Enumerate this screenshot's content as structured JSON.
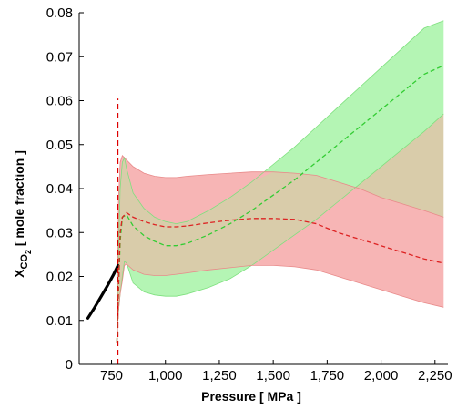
{
  "chart_data": {
    "type": "line",
    "title": "",
    "xlabel": "Pressure [ MPa ]",
    "ylabel": {
      "main": "X",
      "sub1": "CO",
      "sub2": "2",
      "rest": " [ mole fraction ]"
    },
    "xlim": [
      600,
      2310
    ],
    "ylim": [
      0,
      0.08
    ],
    "xticks": [
      750,
      1000,
      1250,
      1500,
      1750,
      2000,
      2250
    ],
    "xtick_labels": [
      "750",
      "1,000",
      "1,250",
      "1,500",
      "1,750",
      "2,000",
      "2,250"
    ],
    "yticks": [
      0,
      0.01,
      0.02,
      0.03,
      0.04,
      0.05,
      0.06,
      0.07,
      0.08
    ],
    "ytick_labels": [
      "0",
      "0.01",
      "0.02",
      "0.03",
      "0.04",
      "0.05",
      "0.06",
      "0.07",
      "0.08"
    ],
    "grid": false,
    "colors": {
      "green_band_fill": "#b4f5b4",
      "green_band_edge": "#7ee07e",
      "red_band_fill": "#f7b5b5",
      "red_band_edge": "#e88a8a",
      "overlap_fill": "#d9ccaa",
      "green_line": "#33cc33",
      "red_line": "#dd2222",
      "black_line": "#000000",
      "vline": "#dd0000"
    },
    "series": [
      {
        "kind": "line",
        "style": "solid-thick",
        "color_key": "black_line",
        "x": [
          640,
          670,
          700,
          730,
          760,
          780
        ],
        "y": [
          0.0105,
          0.0128,
          0.0153,
          0.0178,
          0.0205,
          0.0225
        ]
      },
      {
        "kind": "vline",
        "style": "dashed",
        "color_key": "vline",
        "x": [
          778,
          778
        ],
        "y": [
          0,
          0.0605
        ]
      },
      {
        "kind": "band",
        "color_key": "green_band_fill",
        "edge_key": "green_band_edge",
        "x": [
          775,
          782,
          790,
          800,
          810,
          820,
          850,
          900,
          950,
          1000,
          1050,
          1100,
          1200,
          1300,
          1400,
          1500,
          1600,
          1700,
          1800,
          1900,
          2000,
          2100,
          2200,
          2290
        ],
        "upper": [
          0.0045,
          0.025,
          0.04,
          0.046,
          0.047,
          0.0445,
          0.039,
          0.0355,
          0.0335,
          0.0325,
          0.032,
          0.0325,
          0.035,
          0.038,
          0.0415,
          0.0455,
          0.0495,
          0.054,
          0.0585,
          0.063,
          0.0675,
          0.072,
          0.0765,
          0.0782
        ],
        "lower": [
          0.0045,
          0.012,
          0.016,
          0.02,
          0.0235,
          0.023,
          0.0185,
          0.0165,
          0.0158,
          0.0155,
          0.0155,
          0.016,
          0.0175,
          0.0195,
          0.0225,
          0.026,
          0.0295,
          0.033,
          0.037,
          0.041,
          0.045,
          0.049,
          0.053,
          0.057
        ]
      },
      {
        "kind": "band",
        "color_key": "red_band_fill",
        "edge_key": "red_band_edge",
        "x": [
          775,
          782,
          790,
          800,
          810,
          820,
          850,
          900,
          950,
          1000,
          1050,
          1100,
          1200,
          1300,
          1400,
          1500,
          1600,
          1700,
          1800,
          1900,
          2000,
          2100,
          2200,
          2290
        ],
        "upper": [
          0.005,
          0.037,
          0.046,
          0.0475,
          0.047,
          0.0465,
          0.045,
          0.0435,
          0.0428,
          0.0425,
          0.0425,
          0.0428,
          0.0432,
          0.0435,
          0.0438,
          0.0438,
          0.0435,
          0.043,
          0.0415,
          0.04,
          0.038,
          0.0365,
          0.035,
          0.0335
        ],
        "lower": [
          0.005,
          0.012,
          0.016,
          0.019,
          0.0225,
          0.0228,
          0.0215,
          0.0205,
          0.0202,
          0.0202,
          0.0205,
          0.0208,
          0.0215,
          0.022,
          0.0225,
          0.0225,
          0.0222,
          0.0215,
          0.02,
          0.0185,
          0.017,
          0.0155,
          0.014,
          0.013
        ]
      },
      {
        "kind": "line",
        "style": "dashed",
        "color_key": "green_line",
        "x": [
          775,
          790,
          800,
          820,
          850,
          900,
          950,
          1000,
          1050,
          1100,
          1200,
          1300,
          1400,
          1500,
          1600,
          1700,
          1800,
          1900,
          2000,
          2100,
          2200,
          2290
        ],
        "y": [
          0.005,
          0.028,
          0.0335,
          0.034,
          0.0315,
          0.0293,
          0.028,
          0.027,
          0.027,
          0.0275,
          0.0295,
          0.032,
          0.035,
          0.0385,
          0.042,
          0.046,
          0.05,
          0.054,
          0.058,
          0.062,
          0.066,
          0.068
        ]
      },
      {
        "kind": "line",
        "style": "dashed",
        "color_key": "red_line",
        "x": [
          775,
          790,
          800,
          820,
          850,
          900,
          950,
          1000,
          1050,
          1100,
          1200,
          1300,
          1400,
          1500,
          1600,
          1700,
          1800,
          1900,
          2000,
          2100,
          2200,
          2290
        ],
        "y": [
          0.005,
          0.03,
          0.0335,
          0.0345,
          0.0335,
          0.0325,
          0.0318,
          0.0313,
          0.0313,
          0.0315,
          0.0322,
          0.0328,
          0.0332,
          0.0332,
          0.033,
          0.032,
          0.03,
          0.0285,
          0.027,
          0.0255,
          0.024,
          0.023
        ]
      }
    ]
  }
}
